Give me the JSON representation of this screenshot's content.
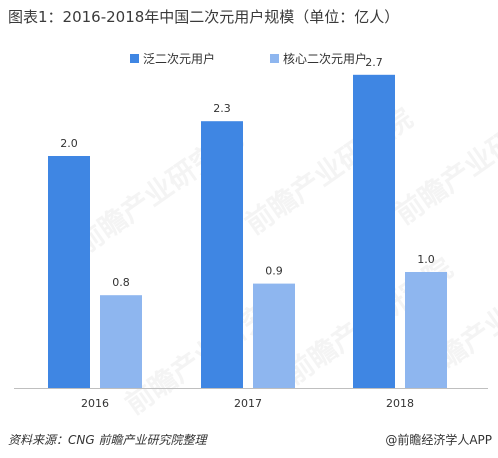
{
  "title": "图表1：2016-2018年中国二次元用户规模（单位：亿人）",
  "footer": {
    "source": "资料来源：CNG 前瞻产业研究院整理",
    "brand": "@前瞻经济学人APP"
  },
  "watermark_text": "前瞻产业研究院",
  "colors": {
    "series1": "#3f86e3",
    "series2": "#8eb6ef",
    "axis": "#bfbfbf"
  },
  "chart_data": {
    "type": "bar",
    "title": "图表1：2016-2018年中国二次元用户规模（单位：亿人）",
    "categories": [
      "2016",
      "2017",
      "2018"
    ],
    "series": [
      {
        "name": "泛二次元用户",
        "values": [
          2.0,
          2.3,
          2.7
        ],
        "labels": [
          "2.0",
          "2.3",
          "2.7"
        ]
      },
      {
        "name": "核心二次元用户",
        "values": [
          0.8,
          0.9,
          1.0
        ],
        "labels": [
          "0.8",
          "0.9",
          "1.0"
        ]
      }
    ],
    "ylim": [
      0,
      3.0
    ],
    "grid": false,
    "legend": "top-center"
  }
}
